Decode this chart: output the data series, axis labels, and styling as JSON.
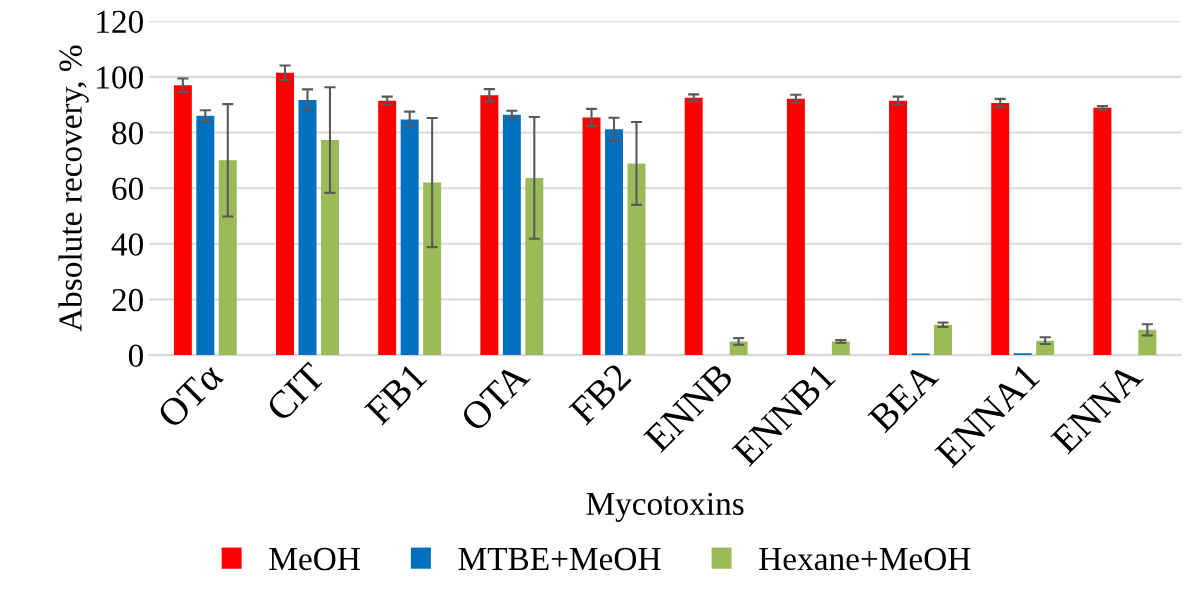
{
  "chart_data": {
    "type": "bar",
    "xlabel": "Mycotoxins",
    "ylabel": "Absolute recovery, %",
    "categories": [
      "OTα",
      "CIT",
      "FB1",
      "OTA",
      "FB2",
      "ENNB",
      "ENNB1",
      "BEA",
      "ENNA1",
      "ENNA"
    ],
    "series": [
      {
        "name": "MeOH",
        "color": "#ff0000",
        "values": [
          97.0,
          101.5,
          91.4,
          93.4,
          85.4,
          92.5,
          92.1,
          91.4,
          90.6,
          88.9
        ],
        "errors": [
          2.4,
          2.6,
          1.5,
          2.2,
          3.1,
          1.2,
          1.5,
          1.5,
          1.5,
          0.6
        ]
      },
      {
        "name": "MTBE+MeOH",
        "color": "#0070c0",
        "values": [
          86.0,
          91.7,
          84.7,
          86.4,
          81.2,
          null,
          null,
          0.6,
          0.7,
          null
        ],
        "errors": [
          2,
          3.8,
          2.8,
          1.4,
          4.1,
          null,
          null,
          null,
          null,
          null
        ]
      },
      {
        "name": "Hexane+MeOH",
        "color": "#9bbb59",
        "values": [
          70.0,
          77.3,
          62.0,
          63.7,
          68.9,
          4.9,
          4.9,
          10.9,
          5.2,
          9.1
        ],
        "errors": [
          20.2,
          19,
          23.2,
          21.9,
          14.9,
          1.2,
          0.5,
          0.8,
          1.2,
          2
        ]
      }
    ],
    "ylim": [
      0,
      120
    ],
    "yticks": [
      0,
      20,
      40,
      60,
      80,
      100,
      120
    ],
    "grid": "y",
    "legend": "bottom"
  }
}
